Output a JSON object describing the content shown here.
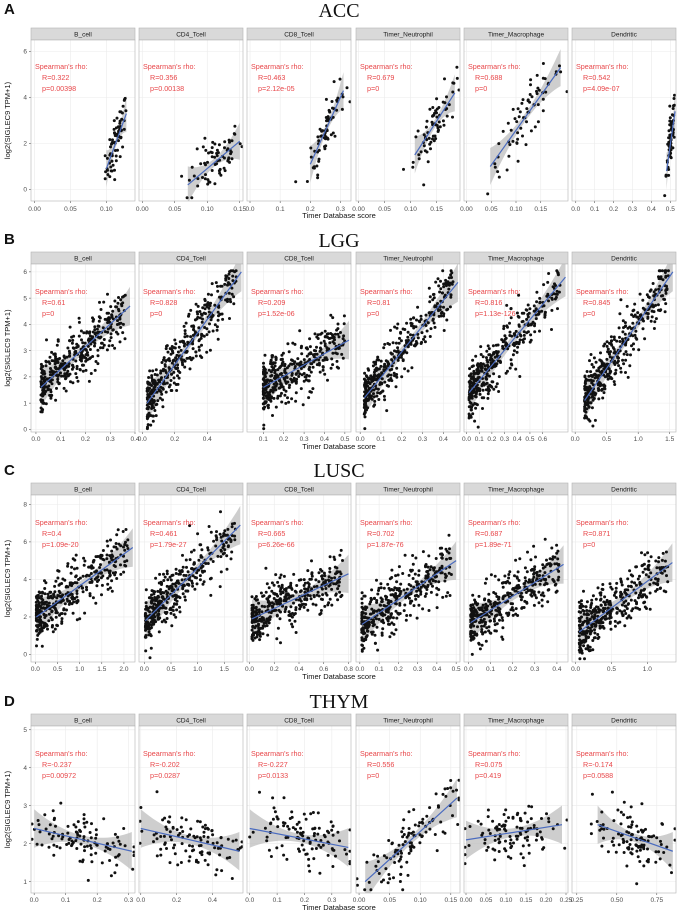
{
  "chart_data": [
    {
      "type": "scatter",
      "panel_letter": "A",
      "title": "ACC",
      "xlabel": "Timer Database score",
      "ylabel": "log2(SIGLEC9 TPM+1)",
      "ylim": [
        -0.5,
        6.5
      ],
      "yticks": [
        0,
        2,
        4,
        6
      ],
      "facets": [
        {
          "name": "B_cell",
          "xlim": [
            -0.005,
            0.14
          ],
          "xticks": [
            0.0,
            0.05,
            0.1
          ],
          "xtick_labels": [
            "0.00",
            "0.05",
            "0.10"
          ],
          "rho_label": "R=0.322",
          "p_label": "p=0.00398",
          "fit": [
            [
              0.1,
              0.9
            ],
            [
              0.128,
              3.3
            ]
          ]
        },
        {
          "name": "CD4_Tcell",
          "xlim": [
            -0.005,
            0.155
          ],
          "xticks": [
            0.0,
            0.05,
            0.1,
            0.15
          ],
          "xtick_labels": [
            "0.00",
            "0.05",
            "0.10",
            "0.15"
          ],
          "rho_label": "R=0.356",
          "p_label": "p=0.00138",
          "fit": [
            [
              0.07,
              0.2
            ],
            [
              0.15,
              2.1
            ]
          ]
        },
        {
          "name": "CD8_Tcell",
          "xlim": [
            -0.01,
            0.335
          ],
          "xticks": [
            0.0,
            0.1,
            0.2,
            0.3
          ],
          "xtick_labels": [
            "0.0",
            "0.1",
            "0.2",
            "0.3"
          ],
          "rho_label": "R=0.463",
          "p_label": "p=2.12e-05",
          "fit": [
            [
              0.2,
              1.1
            ],
            [
              0.31,
              4.3
            ]
          ]
        },
        {
          "name": "Timer_Neutrophil",
          "xlim": [
            -0.005,
            0.195
          ],
          "xticks": [
            0.0,
            0.05,
            0.1,
            0.15
          ],
          "xtick_labels": [
            "0.00",
            "0.05",
            "0.10",
            "0.15"
          ],
          "rho_label": "R=0.679",
          "p_label": "p=0",
          "fit": [
            [
              0.108,
              1.5
            ],
            [
              0.185,
              4.2
            ]
          ]
        },
        {
          "name": "Timer_Macrophage",
          "xlim": [
            -0.005,
            0.205
          ],
          "xticks": [
            0.0,
            0.05,
            0.1,
            0.15
          ],
          "xtick_labels": [
            "0.00",
            "0.05",
            "0.10",
            "0.15"
          ],
          "rho_label": "R=0.688",
          "p_label": "p=0",
          "fit": [
            [
              0.048,
              1.0
            ],
            [
              0.19,
              5.3
            ]
          ]
        },
        {
          "name": "Dendritic",
          "xlim": [
            -0.02,
            0.53
          ],
          "xticks": [
            0.0,
            0.1,
            0.2,
            0.3,
            0.4,
            0.5
          ],
          "xtick_labels": [
            "0.0",
            "0.1",
            "0.2",
            "0.3",
            "0.4",
            "0.5"
          ],
          "rho_label": "R=0.542",
          "p_label": "p=4.09e-07",
          "fit": [
            [
              0.48,
              0.8
            ],
            [
              0.525,
              3.4
            ]
          ]
        }
      ]
    },
    {
      "type": "scatter",
      "panel_letter": "B",
      "title": "LGG",
      "xlabel": "Timer Database score",
      "ylabel": "log2(SIGLEC9 TPM+1)",
      "ylim": [
        -0.1,
        6.3
      ],
      "yticks": [
        0,
        1,
        2,
        3,
        4,
        5,
        6
      ],
      "facets": [
        {
          "name": "B_cell",
          "xlim": [
            -0.02,
            0.4
          ],
          "xticks": [
            0.0,
            0.1,
            0.2,
            0.3,
            0.4
          ],
          "xtick_labels": [
            "0.0",
            "0.1",
            "0.2",
            "0.3",
            "0.4"
          ],
          "rho_label": "R=0.61",
          "p_label": "p=0",
          "fit": [
            [
              0.02,
              1.6
            ],
            [
              0.38,
              4.7
            ]
          ]
        },
        {
          "name": "CD4_Tcell",
          "xlim": [
            -0.02,
            0.62
          ],
          "xticks": [
            0.0,
            0.2,
            0.4
          ],
          "xtick_labels": [
            "0.0",
            "0.2",
            "0.4"
          ],
          "rho_label": "R=0.828",
          "p_label": "p=0",
          "fit": [
            [
              0.03,
              1.0
            ],
            [
              0.61,
              6.0
            ]
          ]
        },
        {
          "name": "CD8_Tcell",
          "xlim": [
            0.02,
            0.53
          ],
          "xticks": [
            0.1,
            0.2,
            0.3,
            0.4,
            0.5
          ],
          "xtick_labels": [
            "0.1",
            "0.2",
            "0.3",
            "0.4",
            "0.5"
          ],
          "rho_label": "R=0.209",
          "p_label": "p=1.52e-06",
          "fit": [
            [
              0.1,
              1.6
            ],
            [
              0.52,
              3.4
            ]
          ]
        },
        {
          "name": "Timer_Neutrophil",
          "xlim": [
            -0.02,
            0.48
          ],
          "xticks": [
            0.0,
            0.1,
            0.2,
            0.3,
            0.4
          ],
          "xtick_labels": [
            "0.0",
            "0.1",
            "0.2",
            "0.3",
            "0.4"
          ],
          "rho_label": "R=0.81",
          "p_label": "p=0",
          "fit": [
            [
              0.02,
              1.2
            ],
            [
              0.47,
              5.6
            ]
          ]
        },
        {
          "name": "Timer_Macrophage",
          "xlim": [
            -0.02,
            0.8
          ],
          "xticks": [
            0.0,
            0.1,
            0.2,
            0.3,
            0.4,
            0.5,
            0.6
          ],
          "xtick_labels": [
            "0.0",
            "0.1",
            "0.2",
            "0.3",
            "0.4",
            "0.5",
            "0.6"
          ],
          "rho_label": "R=0.816",
          "p_label": "p=1.13e-126",
          "fit": [
            [
              0.02,
              1.4
            ],
            [
              0.78,
              5.8
            ]
          ]
        },
        {
          "name": "Dendritic",
          "xlim": [
            -0.05,
            1.6
          ],
          "xticks": [
            0.0,
            0.5,
            1.0,
            1.5
          ],
          "xtick_labels": [
            "0.0",
            "0.5",
            "1.0",
            "1.5"
          ],
          "rho_label": "R=0.845",
          "p_label": "p=0",
          "fit": [
            [
              0.15,
              1.1
            ],
            [
              1.55,
              6.0
            ]
          ]
        }
      ]
    },
    {
      "type": "scatter",
      "panel_letter": "C",
      "title": "LUSC",
      "xlabel": "Timer Database score",
      "ylabel": "log2(SIGLEC9 TPM+1)",
      "ylim": [
        -0.4,
        8.5
      ],
      "yticks": [
        0,
        2,
        4,
        6,
        8
      ],
      "facets": [
        {
          "name": "B_cell",
          "xlim": [
            -0.1,
            2.25
          ],
          "xticks": [
            0.0,
            0.5,
            1.0,
            1.5,
            2.0
          ],
          "xtick_labels": [
            "0.0",
            "0.5",
            "1.0",
            "1.5",
            "2.0"
          ],
          "rho_label": "R=0.4",
          "p_label": "p=1.09e-20",
          "fit": [
            [
              0.02,
              2.0
            ],
            [
              2.2,
              5.7
            ]
          ]
        },
        {
          "name": "CD4_Tcell",
          "xlim": [
            -0.1,
            1.85
          ],
          "xticks": [
            0.0,
            0.5,
            1.0,
            1.5
          ],
          "xtick_labels": [
            "0.0",
            "0.5",
            "1.0",
            "1.5"
          ],
          "rho_label": "R=0.461",
          "p_label": "p=1.79e-27",
          "fit": [
            [
              0.02,
              1.8
            ],
            [
              1.8,
              6.9
            ]
          ]
        },
        {
          "name": "CD8_Tcell",
          "xlim": [
            -0.02,
            0.82
          ],
          "xticks": [
            0.0,
            0.2,
            0.4,
            0.6,
            0.8
          ],
          "xtick_labels": [
            "0.0",
            "0.2",
            "0.4",
            "0.6",
            "0.8"
          ],
          "rho_label": "R=0.665",
          "p_label": "p=6.26e-66",
          "fit": [
            [
              0.02,
              1.9
            ],
            [
              0.8,
              4.3
            ]
          ]
        },
        {
          "name": "Timer_Neutrophil",
          "xlim": [
            -0.02,
            0.52
          ],
          "xticks": [
            0.0,
            0.1,
            0.2,
            0.3,
            0.4,
            0.5
          ],
          "xtick_labels": [
            "0.0",
            "0.1",
            "0.2",
            "0.3",
            "0.4",
            "0.5"
          ],
          "rho_label": "R=0.702",
          "p_label": "p=1.87e-76",
          "fit": [
            [
              0.01,
              1.6
            ],
            [
              0.5,
              5.0
            ]
          ]
        },
        {
          "name": "Timer_Macrophage",
          "xlim": [
            -0.02,
            0.45
          ],
          "xticks": [
            0.0,
            0.1,
            0.2,
            0.3,
            0.4
          ],
          "xtick_labels": [
            "0.0",
            "0.1",
            "0.2",
            "0.3",
            "0.4"
          ],
          "rho_label": "R=0.687",
          "p_label": "p=1.89e-71",
          "fit": [
            [
              0.01,
              1.7
            ],
            [
              0.43,
              4.8
            ]
          ]
        },
        {
          "name": "Dendritic",
          "xlim": [
            -0.05,
            1.4
          ],
          "xticks": [
            0.0,
            0.5,
            1.0
          ],
          "xtick_labels": [
            "0.0",
            "0.5",
            "1.0"
          ],
          "rho_label": "R=0.871",
          "p_label": "p=0",
          "fit": [
            [
              0.05,
              1.2
            ],
            [
              1.35,
              4.9
            ]
          ]
        }
      ]
    },
    {
      "type": "scatter",
      "panel_letter": "D",
      "title": "THYM",
      "xlabel": "Timer Database score",
      "ylabel": "log2(SIGLEC9 TPM+1)",
      "ylim": [
        0.7,
        5.1
      ],
      "yticks": [
        1,
        2,
        3,
        4,
        5
      ],
      "facets": [
        {
          "name": "B_cell",
          "xlim": [
            -0.01,
            0.32
          ],
          "xticks": [
            0.0,
            0.1,
            0.2,
            0.3
          ],
          "xtick_labels": [
            "0.0",
            "0.1",
            "0.2",
            "0.3"
          ],
          "rho_label": "R=-0.237",
          "p_label": "p=0.00972",
          "fit": [
            [
              0.0,
              2.4
            ],
            [
              0.31,
              1.8
            ]
          ]
        },
        {
          "name": "CD4_Tcell",
          "xlim": [
            -0.01,
            0.57
          ],
          "xticks": [
            0.0,
            0.2,
            0.4
          ],
          "xtick_labels": [
            "0.0",
            "0.2",
            "0.4"
          ],
          "rho_label": "R=-0.202",
          "p_label": "p=0.0287",
          "fit": [
            [
              0.0,
              2.4
            ],
            [
              0.55,
              1.8
            ]
          ]
        },
        {
          "name": "CD8_Tcell",
          "xlim": [
            -0.01,
            0.37
          ],
          "xticks": [
            0.0,
            0.1,
            0.2,
            0.3
          ],
          "xtick_labels": [
            "0.0",
            "0.1",
            "0.2",
            "0.3"
          ],
          "rho_label": "R=-0.227",
          "p_label": "p=0.0133",
          "fit": [
            [
              0.0,
              2.4
            ],
            [
              0.36,
              1.9
            ]
          ]
        },
        {
          "name": "Timer_Neutrophil",
          "xlim": [
            -0.005,
            0.165
          ],
          "xticks": [
            0.0,
            0.05,
            0.1,
            0.15
          ],
          "xtick_labels": [
            "0.00",
            "0.05",
            "0.10",
            "0.15"
          ],
          "rho_label": "R=0.556",
          "p_label": "p=0",
          "fit": [
            [
              0.01,
              1.0
            ],
            [
              0.16,
              3.2
            ]
          ]
        },
        {
          "name": "Timer_Macrophage",
          "xlim": [
            -0.005,
            0.255
          ],
          "xticks": [
            0.0,
            0.05,
            0.1,
            0.15,
            0.2,
            0.25
          ],
          "xtick_labels": [
            "0.00",
            "0.05",
            "0.10",
            "0.15",
            "0.20",
            "0.25"
          ],
          "rho_label": "R=0.075",
          "p_label": "p=0.419",
          "fit": [
            [
              0.0,
              2.1
            ],
            [
              0.24,
              2.5
            ]
          ]
        },
        {
          "name": "Dendritic",
          "xlim": [
            0.22,
            0.87
          ],
          "xticks": [
            0.25,
            0.5,
            0.75
          ],
          "xtick_labels": [
            "0.25",
            "0.50",
            "0.75"
          ],
          "rho_label": "R=-0.174",
          "p_label": "p=0.0588",
          "fit": [
            [
              0.38,
              2.5
            ],
            [
              0.85,
              1.8
            ]
          ]
        }
      ]
    }
  ],
  "annotation_header": "Spearman's rho:",
  "colors": {
    "points": "#111111",
    "fit_line": "#4a6bbf",
    "ribbon": "#bdbdbd",
    "annotation": "#e8474a",
    "strip_fill": "#d9d9d9",
    "grid": "#ebebeb",
    "panel_border": "#b3b3b3"
  }
}
